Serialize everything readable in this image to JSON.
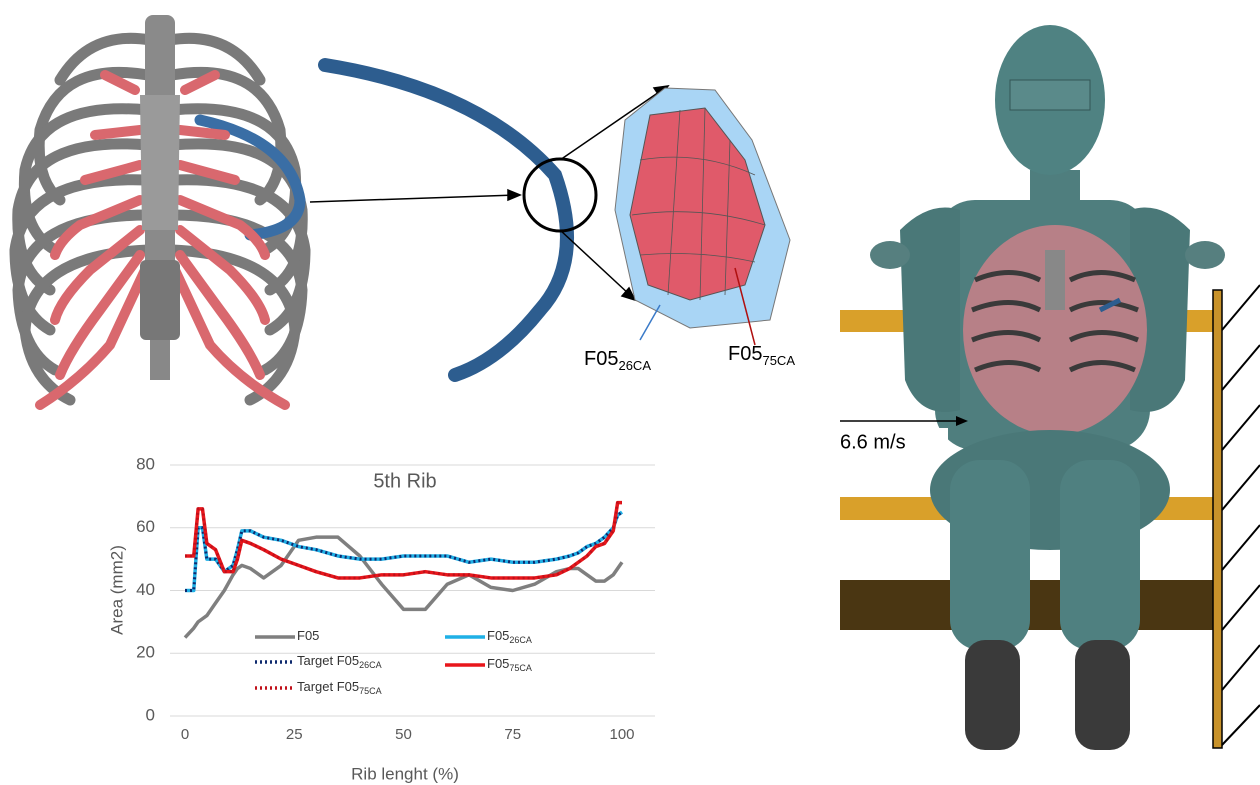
{
  "chart_data": {
    "type": "line",
    "title": "5th Rib",
    "x_label": "Rib lenght (%)",
    "y_label": "Area (mm2)",
    "x": [
      0,
      2,
      3,
      4,
      5,
      7,
      9,
      11,
      12,
      13,
      15,
      18,
      22,
      26,
      30,
      35,
      40,
      45,
      50,
      55,
      60,
      65,
      70,
      75,
      80,
      85,
      88,
      90,
      92,
      94,
      96,
      98,
      99,
      100
    ],
    "xlim": [
      0,
      100
    ],
    "xticks": [
      0,
      25,
      50,
      75,
      100
    ],
    "ylim": [
      0,
      80
    ],
    "yticks": [
      0,
      20,
      40,
      60,
      80
    ],
    "grid": true,
    "series": [
      {
        "name": "F05",
        "color": "#7f7f7f",
        "linestyle": "solid",
        "values": [
          25,
          28,
          30,
          31,
          32,
          36,
          40,
          45,
          47,
          48,
          47,
          44,
          48,
          56,
          57,
          57,
          51,
          42,
          34,
          34,
          42,
          45,
          41,
          40,
          42,
          46,
          47,
          47,
          45,
          43,
          43,
          45,
          47,
          49
        ]
      },
      {
        "name": "F05",
        "subscript": "26CA",
        "color": "#1fb0e6",
        "linestyle": "solid",
        "values": [
          40,
          40,
          60,
          60,
          50,
          50,
          46,
          48,
          53,
          59,
          59,
          57,
          56,
          54,
          53,
          51,
          50,
          50,
          51,
          51,
          51,
          49,
          50,
          49,
          49,
          50,
          51,
          52,
          54,
          55,
          57,
          60,
          64,
          65
        ]
      },
      {
        "name": "Target F05",
        "subscript": "26CA",
        "color": "#0e2a6e",
        "linestyle": "dotted",
        "values": [
          40,
          40,
          60,
          60,
          50,
          50,
          46,
          48,
          53,
          59,
          59,
          57,
          56,
          54,
          53,
          51,
          50,
          50,
          51,
          51,
          51,
          49,
          50,
          49,
          49,
          50,
          51,
          52,
          54,
          55,
          57,
          60,
          64,
          65
        ]
      },
      {
        "name": "F05",
        "subscript": "75CA",
        "color": "#e8161b",
        "linestyle": "solid",
        "values": [
          51,
          51,
          66,
          66,
          55,
          53,
          46,
          46,
          50,
          56,
          55,
          53,
          50,
          48,
          46,
          44,
          44,
          45,
          45,
          46,
          45,
          45,
          44,
          44,
          44,
          45,
          47,
          49,
          51,
          54,
          55,
          59,
          68,
          68
        ]
      },
      {
        "name": "Target F05",
        "subscript": "75CA",
        "color": "#c0101a",
        "linestyle": "dotted",
        "values": [
          51,
          51,
          66,
          66,
          55,
          53,
          46,
          46,
          50,
          56,
          55,
          53,
          50,
          48,
          46,
          44,
          44,
          45,
          45,
          46,
          45,
          45,
          44,
          44,
          44,
          45,
          47,
          49,
          51,
          54,
          55,
          59,
          68,
          68
        ]
      }
    ]
  },
  "labels": {
    "outer": {
      "name": "F05",
      "subscript": "26CA"
    },
    "inner": {
      "name": "F05",
      "subscript": "75CA"
    },
    "velocity": "6.6 m/s"
  }
}
